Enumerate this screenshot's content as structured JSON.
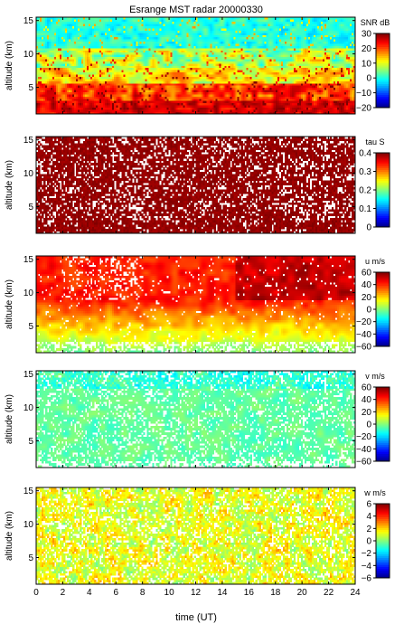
{
  "title": "Esrange MST radar 20000330",
  "chart_data": [
    {
      "type": "heatmap",
      "ylabel": "altitude (km)",
      "colorbar_label": "SNR dB",
      "y_ticks": [
        5,
        10,
        15
      ],
      "ylim": [
        1,
        15.5
      ],
      "clim": [
        -20,
        30
      ],
      "colorbar_ticks": [
        30,
        20,
        10,
        0,
        -10,
        -20
      ],
      "pattern": "snr",
      "colorbar_labels": [
        "30",
        "20",
        "10",
        "0",
        "−10",
        "−20"
      ]
    },
    {
      "type": "heatmap",
      "ylabel": "altitude (km)",
      "colorbar_label": "tau S",
      "y_ticks": [
        5,
        10,
        15
      ],
      "ylim": [
        1,
        15.5
      ],
      "clim": [
        0,
        0.4
      ],
      "colorbar_ticks": [
        0.4,
        0.3,
        0.2,
        0.1,
        0
      ],
      "pattern": "tau",
      "colorbar_labels": [
        "0.4",
        "0.3",
        "0.2",
        "0.1",
        "0"
      ]
    },
    {
      "type": "heatmap",
      "ylabel": "altitude (km)",
      "colorbar_label": "u m/s",
      "y_ticks": [
        5,
        10,
        15
      ],
      "ylim": [
        1,
        15.5
      ],
      "clim": [
        -60,
        60
      ],
      "colorbar_ticks": [
        60,
        40,
        20,
        0,
        -20,
        -40,
        -60
      ],
      "pattern": "u",
      "colorbar_labels": [
        "60",
        "40",
        "20",
        "0",
        "−20",
        "−40",
        "−60"
      ]
    },
    {
      "type": "heatmap",
      "ylabel": "altitude (km)",
      "colorbar_label": "v m/s",
      "y_ticks": [
        5,
        10,
        15
      ],
      "ylim": [
        1,
        15.5
      ],
      "clim": [
        -60,
        60
      ],
      "colorbar_ticks": [
        60,
        40,
        20,
        0,
        -20,
        -40,
        -60
      ],
      "pattern": "v",
      "colorbar_labels": [
        "60",
        "40",
        "20",
        "0",
        "−20",
        "−40",
        "−60"
      ]
    },
    {
      "type": "heatmap",
      "ylabel": "altitude (km)",
      "colorbar_label": "w m/s",
      "y_ticks": [
        5,
        10,
        15
      ],
      "ylim": [
        1,
        15.5
      ],
      "clim": [
        -6,
        6
      ],
      "colorbar_ticks": [
        6,
        4,
        2,
        0,
        -2,
        -4,
        -6
      ],
      "pattern": "w",
      "colorbar_labels": [
        "6",
        "4",
        "2",
        "0",
        "−2",
        "−4",
        "−6"
      ]
    }
  ],
  "x_axis": {
    "label": "time (UT)",
    "xlim": [
      0,
      24
    ],
    "ticks": [
      "0",
      "2",
      "4",
      "6",
      "8",
      "10",
      "12",
      "14",
      "16",
      "18",
      "20",
      "22",
      "24"
    ]
  },
  "colormap": "jet"
}
